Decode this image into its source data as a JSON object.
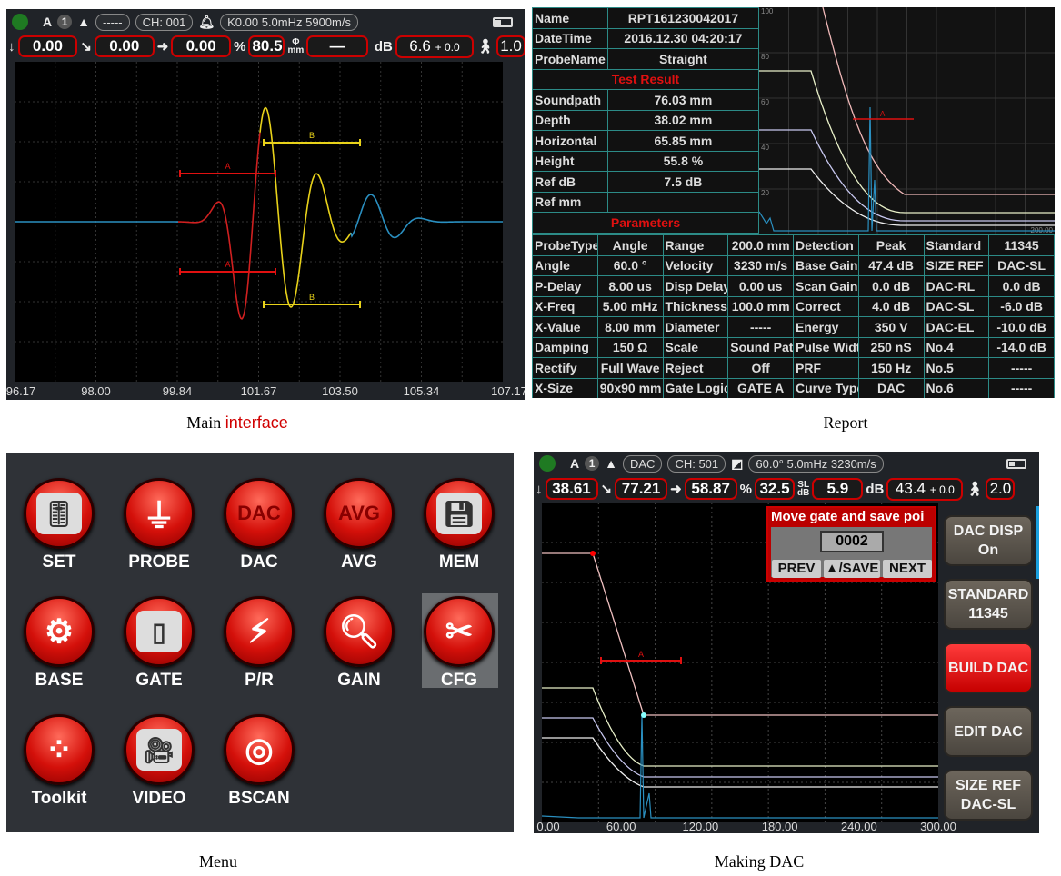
{
  "main": {
    "caption_a": "Main ",
    "caption_b": "interface",
    "mode": "A",
    "channel_num": "1",
    "curve_label": "-----",
    "ch": "CH: 001",
    "probe_info": "K0.00  5.0mHz  5900m/s",
    "readouts": {
      "soundpath": "0.00",
      "depth": "0.00",
      "horizontal": "0.00",
      "pct_sym": "%",
      "height": "80.5",
      "phi_sym": "Φ",
      "phi_unit": "mm",
      "phi_val": "—",
      "db_sym": "dB",
      "gain": "6.6",
      "gain_add": "+ 0.0",
      "step": "1.0"
    },
    "gate_a": "A",
    "gate_b": "B",
    "x_ticks": [
      "96.17",
      "98.00",
      "99.84",
      "101.67",
      "103.50",
      "105.34",
      "107.17"
    ]
  },
  "report": {
    "caption": "Report",
    "info": [
      {
        "label": "Name",
        "value": "RPT161230042017"
      },
      {
        "label": "DateTime",
        "value": "2016.12.30  04:20:17"
      },
      {
        "label": "ProbeName",
        "value": "Straight"
      }
    ],
    "test_result_title": "Test Result",
    "results": [
      {
        "label": "Soundpath",
        "value": "76.03 mm"
      },
      {
        "label": "Depth",
        "value": "38.02 mm"
      },
      {
        "label": "Horizontal",
        "value": "65.85 mm"
      },
      {
        "label": "Height",
        "value": "55.8 %"
      },
      {
        "label": "Ref dB",
        "value": "7.5 dB"
      },
      {
        "label": "Ref mm",
        "value": ""
      }
    ],
    "parameters_title": "Parameters",
    "chart": {
      "y_ticks": [
        "100",
        "80",
        "60",
        "40",
        "20",
        "0.00"
      ],
      "x_end": "200.00",
      "gate": "A"
    },
    "params": [
      [
        "ProbeType",
        "Angle",
        "Range",
        "200.0 mm",
        "Detection",
        "Peak",
        "Standard",
        "11345"
      ],
      [
        "Angle",
        "60.0 °",
        "Velocity",
        "3230 m/s",
        "Base Gain",
        "47.4 dB",
        "SIZE REF",
        "DAC-SL"
      ],
      [
        "P-Delay",
        "8.00 us",
        "Disp Delay",
        "0.00 us",
        "Scan Gain",
        "0.0 dB",
        "DAC-RL",
        "0.0 dB"
      ],
      [
        "X-Freq",
        "5.00 mHz",
        "Thickness",
        "100.0 mm",
        "Correct",
        "4.0 dB",
        "DAC-SL",
        "-6.0 dB"
      ],
      [
        "X-Value",
        "8.00 mm",
        "Diameter",
        "-----",
        "Energy",
        "350 V",
        "DAC-EL",
        "-10.0 dB"
      ],
      [
        "Damping",
        "150 Ω",
        "Scale",
        "Sound Path",
        "Pulse Width",
        "250 nS",
        "No.4",
        "-14.0 dB"
      ],
      [
        "Rectify",
        "Full Wave",
        "Reject",
        "Off",
        "PRF",
        "150 Hz",
        "No.5",
        "-----"
      ],
      [
        "X-Size",
        "90x90 mm",
        "Gate Logic",
        "GATE A",
        "Curve Type",
        "DAC",
        "No.6",
        "-----"
      ]
    ]
  },
  "menu": {
    "caption": "Menu",
    "items": [
      {
        "label": "SET",
        "icon": "sliders-icon"
      },
      {
        "label": "PROBE",
        "icon": "probe-icon"
      },
      {
        "label": "DAC",
        "icon": "dac-text-icon",
        "text": "DAC"
      },
      {
        "label": "AVG",
        "icon": "avg-text-icon",
        "text": "AVG"
      },
      {
        "label": "MEM",
        "icon": "floppy-disk-icon"
      },
      {
        "label": "BASE",
        "icon": "gear-icon"
      },
      {
        "label": "GATE",
        "icon": "gate-door-icon"
      },
      {
        "label": "P/R",
        "icon": "lightning-icon"
      },
      {
        "label": "GAIN",
        "icon": "magnifier-icon"
      },
      {
        "label": "CFG",
        "icon": "tools-icon",
        "selected": true
      },
      {
        "label": "Toolkit",
        "icon": "toolkit-dots-icon"
      },
      {
        "label": "VIDEO",
        "icon": "video-camera-icon"
      },
      {
        "label": "BSCAN",
        "icon": "radar-icon"
      }
    ]
  },
  "dac": {
    "caption": "Making DAC",
    "mode": "A",
    "channel_num": "1",
    "curve_label": "DAC",
    "ch": "CH: 501",
    "probe_info": "60.0°  5.0mHz  3230m/s",
    "readouts": {
      "soundpath": "38.61",
      "depth": "77.21",
      "horizontal": "58.87",
      "pct_sym": "%",
      "height": "32.5",
      "sl_sym": "SL",
      "sl_unit": "dB",
      "sl_val": "5.9",
      "db_sym": "dB",
      "gain": "43.4",
      "gain_add": "+ 0.0",
      "step": "2.0"
    },
    "popup": {
      "title": "Move gate and save poi",
      "value": "0002",
      "prev": "PREV",
      "save": "▲/SAVE",
      "next": "NEXT"
    },
    "buttons": [
      {
        "line1": "DAC DISP",
        "line2": "On"
      },
      {
        "line1": "STANDARD",
        "line2": "11345"
      },
      {
        "line1": "BUILD DAC",
        "line2": "",
        "active": true
      },
      {
        "line1": "EDIT DAC",
        "line2": ""
      },
      {
        "line1": "SIZE REF",
        "line2": "DAC-SL"
      }
    ],
    "gate": "A",
    "x_ticks": [
      "0.00",
      "60.00",
      "120.00",
      "180.00",
      "240.00",
      "300.00"
    ]
  },
  "colors": {
    "accent_red": "#cc0000",
    "grid": "#2c8b87",
    "signal_blue": "#2a8fc0",
    "gate_yellow": "#e8d21a"
  }
}
